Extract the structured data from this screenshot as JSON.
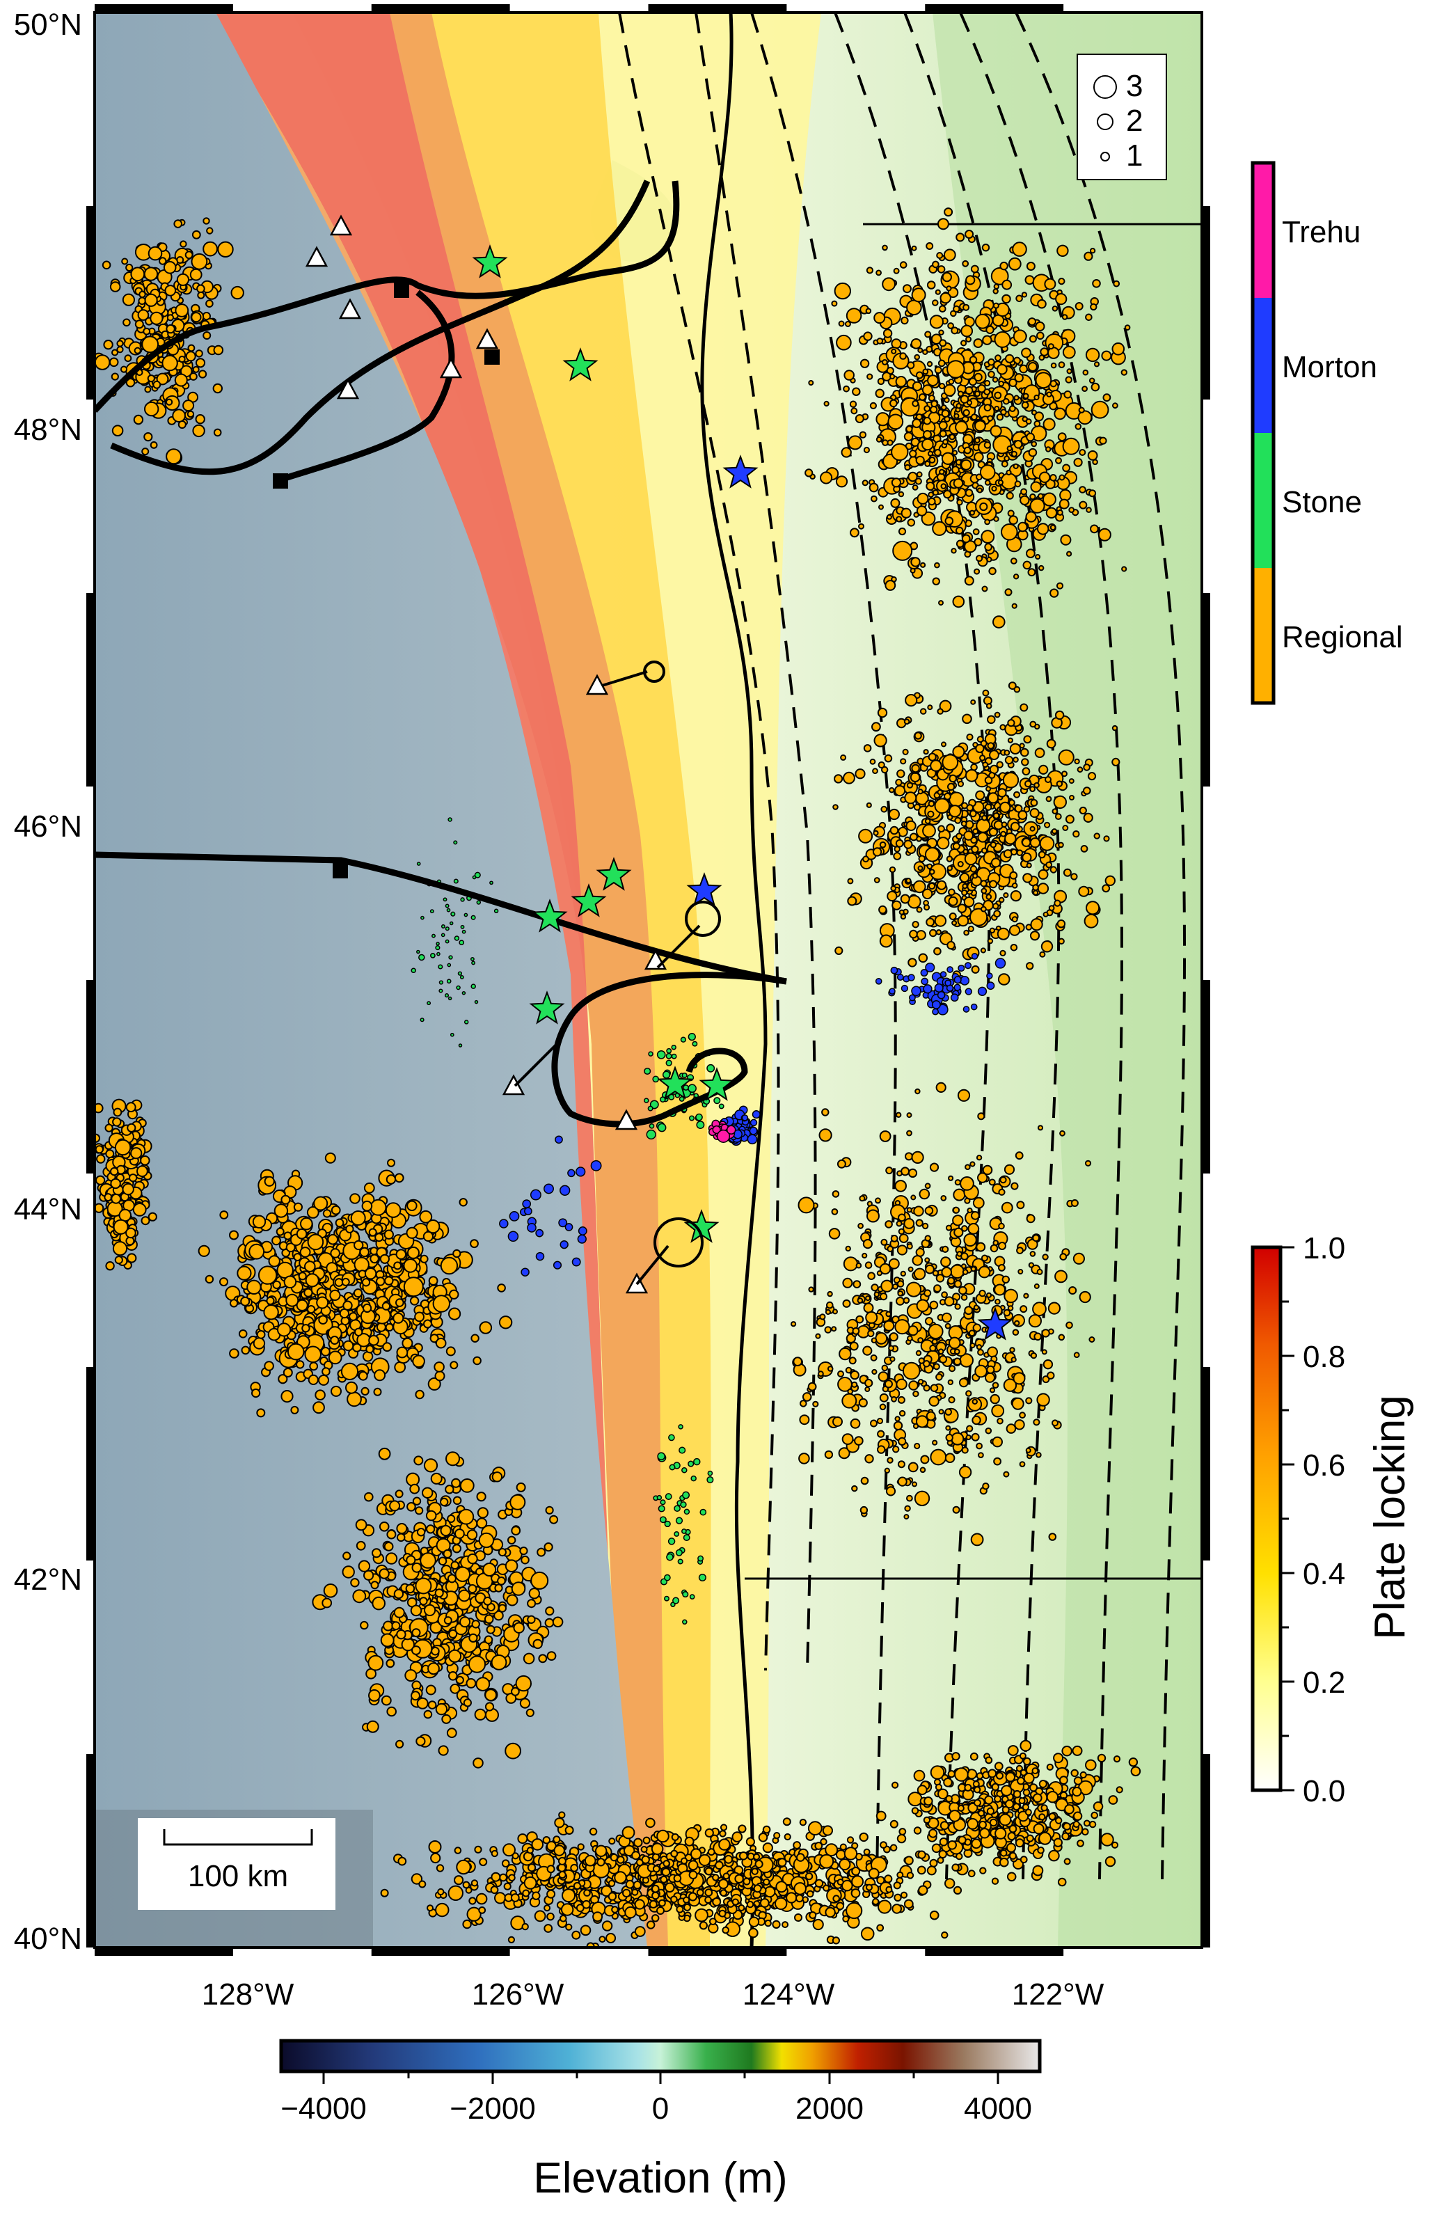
{
  "map": {
    "lat_labels": [
      "50°N",
      "48°N",
      "46°N",
      "44°N",
      "42°N",
      "40°N"
    ],
    "lon_labels": [
      "128°W",
      "126°W",
      "124°W",
      "122°W"
    ],
    "scale_bar_label": "100 km"
  },
  "size_legend": {
    "items": [
      "3",
      "2",
      "1"
    ]
  },
  "catalog_legend": {
    "items": [
      {
        "label": "Trehu",
        "color": "#ff1aa8"
      },
      {
        "label": "Morton",
        "color": "#1f3cff"
      },
      {
        "label": "Stone",
        "color": "#22e05a"
      },
      {
        "label": "Regional",
        "color": "#ffb000"
      }
    ]
  },
  "locking_colorbar": {
    "title": "Plate locking",
    "tick_labels": [
      "1.0",
      "0.8",
      "0.6",
      "0.4",
      "0.2",
      "0.0"
    ],
    "colors": [
      "#d10000",
      "#f05a00",
      "#ffa000",
      "#ffe000",
      "#ffff90",
      "#ffffff"
    ]
  },
  "elevation_colorbar": {
    "title": "Elevation (m)",
    "tick_labels": [
      "−4000",
      "−2000",
      "0",
      "2000",
      "4000"
    ],
    "range": [
      -4500,
      4500
    ]
  }
}
